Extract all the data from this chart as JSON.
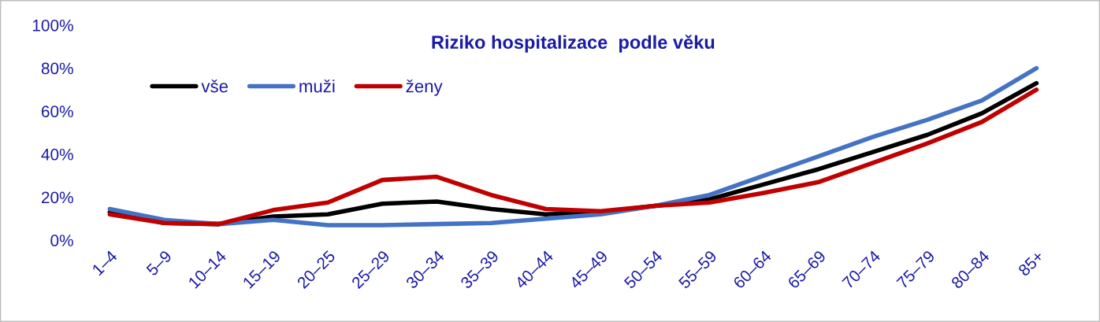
{
  "chart_data": {
    "type": "line",
    "title": "Riziko hospitalizace  podle věku",
    "categories": [
      "1–4",
      "5–9",
      "10–14",
      "15–19",
      "20–25",
      "25–29",
      "30–34",
      "35–39",
      "40–44",
      "45–49",
      "50–54",
      "55–59",
      "60–64",
      "65–69",
      "70–74",
      "75–79",
      "80–84",
      "85+"
    ],
    "series": [
      {
        "name": "vše",
        "color": "#000000",
        "values": [
          13,
          8,
          7.5,
          11,
          12,
          17,
          18,
          14.5,
          12,
          13,
          16,
          19,
          26,
          33,
          41,
          49,
          59,
          73
        ]
      },
      {
        "name": "muži",
        "color": "#4472c4",
        "values": [
          14.5,
          9.5,
          7.5,
          9.5,
          7,
          7,
          7.5,
          8,
          10,
          12,
          16,
          21,
          30,
          39,
          48,
          56,
          65,
          80
        ]
      },
      {
        "name": "ženy",
        "color": "#c00000",
        "values": [
          12,
          8,
          7.5,
          14,
          17.5,
          28,
          29.5,
          21,
          14.5,
          13.5,
          16,
          17.5,
          22,
          27,
          36,
          45,
          55,
          70
        ]
      }
    ],
    "ylim": [
      0,
      100
    ],
    "yticks": [
      {
        "value": 0,
        "label": "0%"
      },
      {
        "value": 20,
        "label": "20%"
      },
      {
        "value": 40,
        "label": "40%"
      },
      {
        "value": 60,
        "label": "60%"
      },
      {
        "value": 80,
        "label": "80%"
      },
      {
        "value": 100,
        "label": "100%"
      }
    ],
    "legend": "top left",
    "grid": false,
    "marker": "none",
    "line_style": "solid"
  }
}
